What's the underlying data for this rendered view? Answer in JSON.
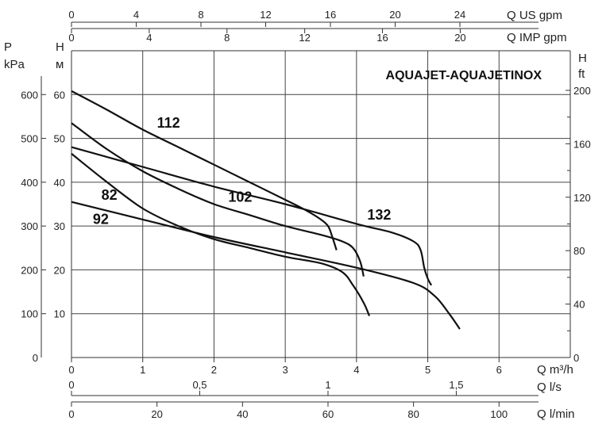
{
  "chart_data": {
    "type": "line",
    "title": "AQUAJET-AQUAJETINOX",
    "x_axis": {
      "label": "Q m3/h",
      "unit": "Q m³/h",
      "range": [
        0,
        7
      ],
      "ticks": [
        "0",
        "1",
        "2",
        "3",
        "4",
        "5",
        "6"
      ]
    },
    "x_axis_ls": {
      "unit": "Q l/s",
      "ticks": [
        {
          "value": 0,
          "label": "0"
        },
        {
          "value": 0.5,
          "label": "0,5"
        },
        {
          "value": 1,
          "label": "1"
        },
        {
          "value": 1.5,
          "label": "1,5"
        }
      ]
    },
    "x_axis_lmin": {
      "unit": "Q l/min",
      "ticks": [
        {
          "value": 0,
          "label": "0"
        },
        {
          "value": 20,
          "label": "20"
        },
        {
          "value": 40,
          "label": "40"
        },
        {
          "value": 60,
          "label": "60"
        },
        {
          "value": 80,
          "label": "80"
        },
        {
          "value": 100,
          "label": "100"
        }
      ]
    },
    "x_axis_us_gpm": {
      "unit": "Q US gpm",
      "ticks": [
        {
          "value": 0,
          "label": "0"
        },
        {
          "value": 4,
          "label": "4"
        },
        {
          "value": 8,
          "label": "8"
        },
        {
          "value": 12,
          "label": "12"
        },
        {
          "value": 16,
          "label": "16"
        },
        {
          "value": 20,
          "label": "20"
        },
        {
          "value": 24,
          "label": "24"
        }
      ]
    },
    "x_axis_imp_gpm": {
      "unit": "Q IMP gpm",
      "ticks": [
        {
          "value": 0,
          "label": "0"
        },
        {
          "value": 4,
          "label": "4"
        },
        {
          "value": 8,
          "label": "8"
        },
        {
          "value": 12,
          "label": "12"
        },
        {
          "value": 16,
          "label": "16"
        },
        {
          "value": 20,
          "label": "20"
        }
      ]
    },
    "y_axis": {
      "label_top": "H",
      "unit": "м",
      "range": [
        0,
        70
      ],
      "ticks": [
        "10",
        "20",
        "30",
        "40",
        "50",
        "60"
      ]
    },
    "y_axis_kpa": {
      "label_top": "P",
      "unit": "kPa",
      "ticks": [
        {
          "value": 100,
          "label": "100"
        },
        {
          "value": 200,
          "label": "200"
        },
        {
          "value": 300,
          "label": "300"
        },
        {
          "value": 400,
          "label": "400"
        },
        {
          "value": 500,
          "label": "500"
        },
        {
          "value": 600,
          "label": "600"
        }
      ],
      "zero_label": "0"
    },
    "y_axis_ft": {
      "label_top": "H",
      "unit": "ft",
      "ticks": [
        {
          "value": 0,
          "label": "0"
        },
        {
          "value": 40,
          "label": "40"
        },
        {
          "value": 80,
          "label": "80"
        },
        {
          "value": 120,
          "label": "120"
        },
        {
          "value": 160,
          "label": "160"
        },
        {
          "value": 200,
          "label": "200"
        }
      ]
    },
    "grid": true,
    "series": [
      {
        "name": "112",
        "label_pos": [
          1.2,
          52.5
        ],
        "points": [
          [
            0,
            60.8
          ],
          [
            0.5,
            56.5
          ],
          [
            1,
            52
          ],
          [
            1.5,
            48
          ],
          [
            2,
            44
          ],
          [
            2.5,
            40
          ],
          [
            3,
            36
          ],
          [
            3.3,
            33.5
          ],
          [
            3.5,
            31.5
          ],
          [
            3.6,
            30
          ],
          [
            3.65,
            28
          ],
          [
            3.72,
            24.5
          ]
        ]
      },
      {
        "name": "102",
        "label_pos": [
          2.2,
          35.5
        ],
        "points": [
          [
            0,
            53.5
          ],
          [
            0.5,
            47.5
          ],
          [
            1,
            42.5
          ],
          [
            1.5,
            38.5
          ],
          [
            2,
            35
          ],
          [
            2.5,
            32.5
          ],
          [
            3,
            30
          ],
          [
            3.5,
            28
          ],
          [
            3.8,
            26.5
          ],
          [
            3.95,
            25
          ],
          [
            4.05,
            22
          ],
          [
            4.1,
            18.5
          ]
        ]
      },
      {
        "name": "132",
        "label_pos": [
          4.15,
          31.5
        ],
        "points": [
          [
            0,
            48
          ],
          [
            1,
            43.5
          ],
          [
            2,
            39
          ],
          [
            3,
            35
          ],
          [
            4,
            30.5
          ],
          [
            4.5,
            28.5
          ],
          [
            4.8,
            26.5
          ],
          [
            4.9,
            24.5
          ],
          [
            4.95,
            20.5
          ],
          [
            5,
            18
          ],
          [
            5.05,
            16.5
          ]
        ]
      },
      {
        "name": "82",
        "label_pos": [
          0.42,
          36
        ],
        "points": [
          [
            0,
            46.5
          ],
          [
            0.5,
            40
          ],
          [
            1,
            34
          ],
          [
            1.5,
            30
          ],
          [
            2,
            27
          ],
          [
            2.5,
            25
          ],
          [
            3,
            23
          ],
          [
            3.5,
            21.5
          ],
          [
            3.8,
            19.5
          ],
          [
            3.95,
            16.5
          ],
          [
            4.1,
            12.5
          ],
          [
            4.18,
            9.5
          ]
        ]
      },
      {
        "name": "92",
        "label_pos": [
          0.3,
          30.5
        ],
        "points": [
          [
            0,
            35.5
          ],
          [
            1,
            31.5
          ],
          [
            2,
            27.5
          ],
          [
            3,
            24
          ],
          [
            4,
            20.5
          ],
          [
            4.8,
            17
          ],
          [
            5.1,
            14
          ],
          [
            5.3,
            10
          ],
          [
            5.45,
            6.5
          ]
        ]
      }
    ]
  }
}
